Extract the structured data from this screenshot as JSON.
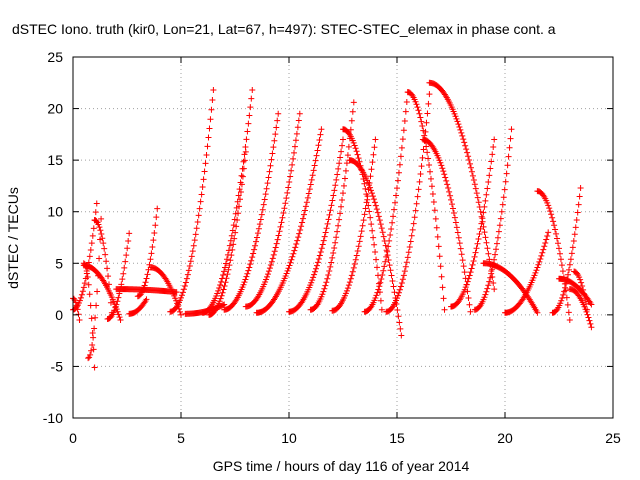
{
  "chart_data": {
    "type": "scatter",
    "title": "dSTEC Iono. truth (kir0, Lon=21, Lat=67, h=497): STEC-STEC_elemax in phase cont. a",
    "xlabel": "GPS time / hours of day 116 of year 2014",
    "ylabel": "dSTEC  / TECUs",
    "xlim": [
      0,
      25
    ],
    "ylim": [
      -10,
      25
    ],
    "xticks": [
      0,
      5,
      10,
      15,
      20,
      25
    ],
    "yticks": [
      -10,
      -5,
      0,
      5,
      10,
      15,
      20,
      25
    ],
    "grid": true,
    "marker": "+",
    "color": "#ff0000",
    "series": [
      {
        "arcs": [
          [
            0.0,
            0.3,
            1.6,
            -0.5
          ],
          [
            0.0,
            1.1,
            0.5,
            10.8
          ],
          [
            0.5,
            1.0,
            5.0,
            -5.1
          ],
          [
            0.7,
            1.3,
            -4.2,
            9.3
          ],
          [
            0.5,
            2.2,
            4.8,
            -0.5
          ]
        ]
      },
      {
        "arcs": [
          [
            1.0,
            1.8,
            9.2,
            0.2
          ],
          [
            1.6,
            2.6,
            -0.4,
            7.9
          ],
          [
            2.6,
            3.4,
            0.1,
            1.5
          ],
          [
            3.0,
            3.9,
            1.8,
            10.3
          ]
        ]
      },
      {
        "arcs": [
          [
            2.0,
            4.8,
            2.5,
            2.2
          ],
          [
            3.6,
            5.0,
            4.6,
            0.0
          ],
          [
            4.5,
            6.5,
            0.3,
            21.8
          ],
          [
            5.2,
            7.0,
            0.1,
            1.0
          ]
        ]
      },
      {
        "arcs": [
          [
            6.0,
            8.3,
            0.2,
            21.8
          ],
          [
            6.3,
            8.0,
            0.0,
            15.8
          ],
          [
            7.0,
            9.5,
            0.5,
            19.5
          ],
          [
            8.0,
            10.5,
            0.8,
            19.5
          ]
        ]
      },
      {
        "arcs": [
          [
            8.5,
            11.5,
            0.2,
            18.0
          ],
          [
            10.0,
            12.5,
            0.3,
            17.0
          ],
          [
            11.0,
            13.0,
            0.5,
            20.6
          ],
          [
            12.0,
            14.0,
            0.4,
            17.0
          ]
        ]
      },
      {
        "arcs": [
          [
            12.5,
            14.3,
            18.0,
            0.5
          ],
          [
            12.8,
            15.2,
            15.0,
            -2.0
          ],
          [
            13.5,
            15.5,
            0.3,
            21.6
          ],
          [
            14.5,
            16.5,
            0.3,
            21.4
          ]
        ]
      },
      {
        "arcs": [
          [
            15.5,
            17.2,
            21.6,
            0.5
          ],
          [
            16.2,
            18.4,
            17.0,
            0.3
          ],
          [
            16.5,
            19.5,
            22.5,
            2.5
          ],
          [
            17.5,
            19.5,
            0.8,
            17.0
          ]
        ]
      },
      {
        "arcs": [
          [
            18.6,
            20.3,
            0.5,
            18.0
          ],
          [
            19.0,
            21.5,
            5.0,
            0.2
          ],
          [
            20.0,
            22.0,
            0.2,
            8.0
          ],
          [
            21.5,
            23.0,
            12.0,
            -0.5
          ]
        ]
      },
      {
        "arcs": [
          [
            22.2,
            23.5,
            0.2,
            12.3
          ],
          [
            22.5,
            24.0,
            3.5,
            1.0
          ],
          [
            23.0,
            24.0,
            2.5,
            -1.2
          ],
          [
            23.2,
            23.8,
            4.2,
            0.5
          ]
        ]
      }
    ]
  }
}
